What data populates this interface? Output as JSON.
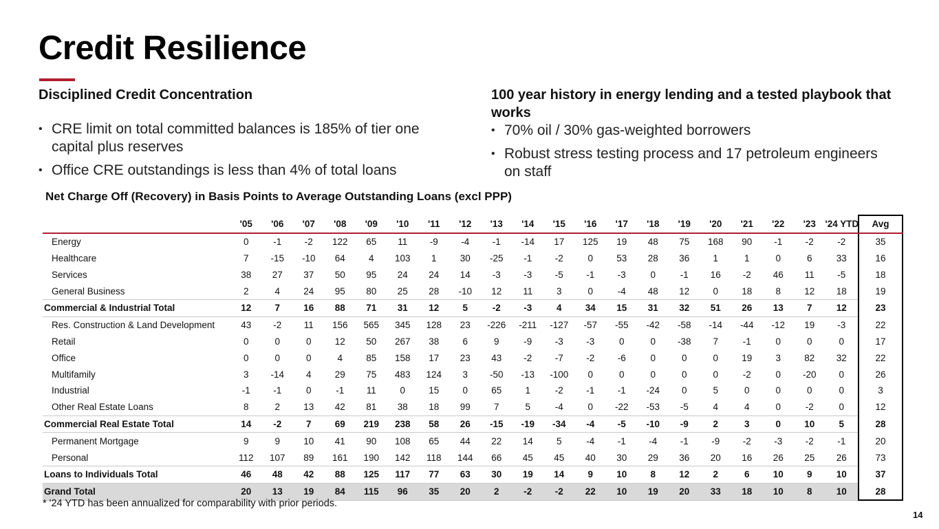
{
  "title": "Credit Resilience",
  "colors": {
    "accent": "#b01e2f",
    "grand_total_bg": "#d9d9d9"
  },
  "left": {
    "heading": "Disciplined Credit Concentration",
    "bullets": [
      "CRE limit on total committed balances is 185% of tier one capital plus reserves",
      "Office CRE outstandings is less than 4% of total loans"
    ]
  },
  "right": {
    "heading": "100 year history in energy lending and a tested playbook that works",
    "bullets": [
      "70% oil / 30% gas-weighted borrowers",
      "Robust stress testing process and 17 petroleum engineers on staff"
    ]
  },
  "table": {
    "title": "Net Charge Off (Recovery) in Basis Points to Average Outstanding Loans (excl PPP)",
    "columns": [
      "'05",
      "'06",
      "'07",
      "'08",
      "'09",
      "'10",
      "'11",
      "'12",
      "'13",
      "'14",
      "'15",
      "'16",
      "'17",
      "'18",
      "'19",
      "'20",
      "'21",
      "'22",
      "'23",
      "'24 YTD",
      "Avg"
    ],
    "rows": [
      {
        "label": "Energy",
        "type": "item",
        "values": [
          "0",
          "-1",
          "-2",
          "122",
          "65",
          "11",
          "-9",
          "-4",
          "-1",
          "-14",
          "17",
          "125",
          "19",
          "48",
          "75",
          "168",
          "90",
          "-1",
          "-2",
          "-2",
          "35"
        ]
      },
      {
        "label": "Healthcare",
        "type": "item",
        "values": [
          "7",
          "-15",
          "-10",
          "64",
          "4",
          "103",
          "1",
          "30",
          "-25",
          "-1",
          "-2",
          "0",
          "53",
          "28",
          "36",
          "1",
          "1",
          "0",
          "6",
          "33",
          "16"
        ]
      },
      {
        "label": "Services",
        "type": "item",
        "values": [
          "38",
          "27",
          "37",
          "50",
          "95",
          "24",
          "24",
          "14",
          "-3",
          "-3",
          "-5",
          "-1",
          "-3",
          "0",
          "-1",
          "16",
          "-2",
          "46",
          "11",
          "-5",
          "18"
        ]
      },
      {
        "label": "General Business",
        "type": "item",
        "values": [
          "2",
          "4",
          "24",
          "95",
          "80",
          "25",
          "28",
          "-10",
          "12",
          "11",
          "3",
          "0",
          "-4",
          "48",
          "12",
          "0",
          "18",
          "8",
          "12",
          "18",
          "19"
        ]
      },
      {
        "label": "Commercial & Industrial Total",
        "type": "total",
        "values": [
          "12",
          "7",
          "16",
          "88",
          "71",
          "31",
          "12",
          "5",
          "-2",
          "-3",
          "4",
          "34",
          "15",
          "31",
          "32",
          "51",
          "26",
          "13",
          "7",
          "12",
          "23"
        ]
      },
      {
        "label": "Res. Construction & Land Development",
        "type": "item",
        "values": [
          "43",
          "-2",
          "11",
          "156",
          "565",
          "345",
          "128",
          "23",
          "-226",
          "-211",
          "-127",
          "-57",
          "-55",
          "-42",
          "-58",
          "-14",
          "-44",
          "-12",
          "19",
          "-3",
          "22"
        ]
      },
      {
        "label": "Retail",
        "type": "item",
        "values": [
          "0",
          "0",
          "0",
          "12",
          "50",
          "267",
          "38",
          "6",
          "9",
          "-9",
          "-3",
          "-3",
          "0",
          "0",
          "-38",
          "7",
          "-1",
          "0",
          "0",
          "0",
          "17"
        ]
      },
      {
        "label": "Office",
        "type": "item",
        "values": [
          "0",
          "0",
          "0",
          "4",
          "85",
          "158",
          "17",
          "23",
          "43",
          "-2",
          "-7",
          "-2",
          "-6",
          "0",
          "0",
          "0",
          "19",
          "3",
          "82",
          "32",
          "22"
        ]
      },
      {
        "label": "Multifamily",
        "type": "item",
        "values": [
          "3",
          "-14",
          "4",
          "29",
          "75",
          "483",
          "124",
          "3",
          "-50",
          "-13",
          "-100",
          "0",
          "0",
          "0",
          "0",
          "0",
          "-2",
          "0",
          "-20",
          "0",
          "26"
        ]
      },
      {
        "label": "Industrial",
        "type": "item",
        "values": [
          "-1",
          "-1",
          "0",
          "-1",
          "11",
          "0",
          "15",
          "0",
          "65",
          "1",
          "-2",
          "-1",
          "-1",
          "-24",
          "0",
          "5",
          "0",
          "0",
          "0",
          "0",
          "3"
        ]
      },
      {
        "label": "Other Real Estate Loans",
        "type": "item",
        "values": [
          "8",
          "2",
          "13",
          "42",
          "81",
          "38",
          "18",
          "99",
          "7",
          "5",
          "-4",
          "0",
          "-22",
          "-53",
          "-5",
          "4",
          "4",
          "0",
          "-2",
          "0",
          "12"
        ]
      },
      {
        "label": "Commercial Real Estate Total",
        "type": "total",
        "values": [
          "14",
          "-2",
          "7",
          "69",
          "219",
          "238",
          "58",
          "26",
          "-15",
          "-19",
          "-34",
          "-4",
          "-5",
          "-10",
          "-9",
          "2",
          "3",
          "0",
          "10",
          "5",
          "28"
        ]
      },
      {
        "label": "Permanent Mortgage",
        "type": "item",
        "values": [
          "9",
          "9",
          "10",
          "41",
          "90",
          "108",
          "65",
          "44",
          "22",
          "14",
          "5",
          "-4",
          "-1",
          "-4",
          "-1",
          "-9",
          "-2",
          "-3",
          "-2",
          "-1",
          "20"
        ]
      },
      {
        "label": "Personal",
        "type": "item",
        "values": [
          "112",
          "107",
          "89",
          "161",
          "190",
          "142",
          "118",
          "144",
          "66",
          "45",
          "45",
          "40",
          "30",
          "29",
          "36",
          "20",
          "16",
          "26",
          "25",
          "26",
          "73"
        ]
      },
      {
        "label": "Loans to Individuals Total",
        "type": "total",
        "values": [
          "46",
          "48",
          "42",
          "88",
          "125",
          "117",
          "77",
          "63",
          "30",
          "19",
          "14",
          "9",
          "10",
          "8",
          "12",
          "2",
          "6",
          "10",
          "9",
          "10",
          "37"
        ]
      },
      {
        "label": "Grand Total",
        "type": "grand",
        "values": [
          "20",
          "13",
          "19",
          "84",
          "115",
          "96",
          "35",
          "20",
          "2",
          "-2",
          "-2",
          "22",
          "10",
          "19",
          "20",
          "33",
          "18",
          "10",
          "8",
          "10",
          "28"
        ]
      }
    ]
  },
  "footnote": "* '24 YTD has been annualized for comparability with prior periods.",
  "page_number": "14"
}
